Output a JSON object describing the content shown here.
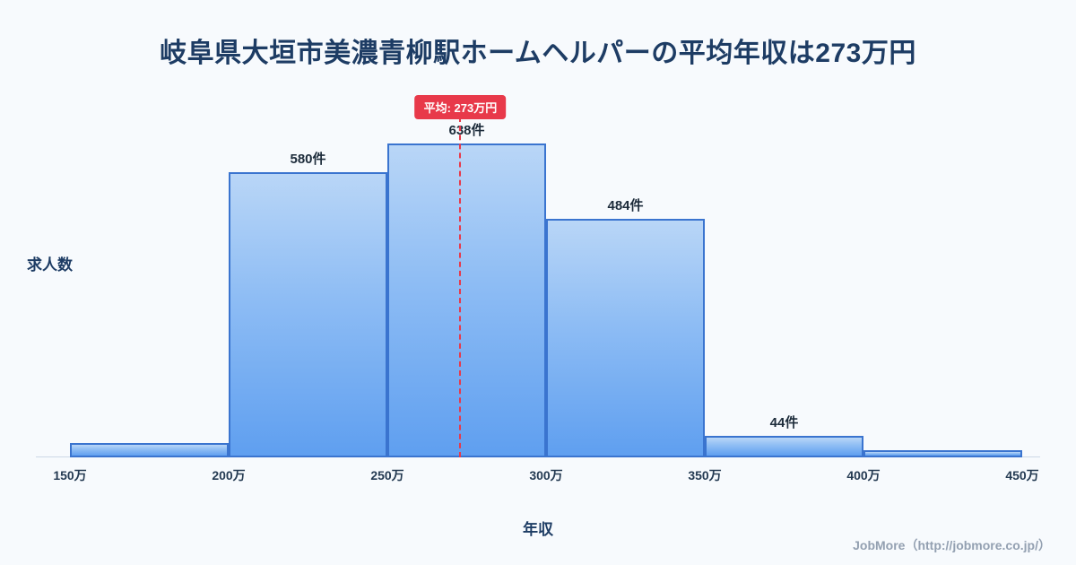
{
  "page": {
    "title": "岐阜県大垣市美濃青柳駅ホームヘルパーの平均年収は273万円",
    "footer": "JobMore（http://jobmore.co.jp/）"
  },
  "chart_data": {
    "type": "bar",
    "title": "岐阜県大垣市美濃青柳駅ホームヘルパーの平均年収は273万円",
    "xlabel": "年収",
    "ylabel": "求人数",
    "x_tick_labels": [
      "150万",
      "200万",
      "250万",
      "300万",
      "350万",
      "400万",
      "450万"
    ],
    "bin_edges": [
      150,
      200,
      250,
      300,
      350,
      400,
      450
    ],
    "values": [
      30,
      580,
      638,
      484,
      44,
      14
    ],
    "bar_labels": [
      "",
      "580件",
      "638件",
      "484件",
      "44件",
      ""
    ],
    "mean": 273,
    "mean_label": "平均: 273万円",
    "legend": "none",
    "grid": "off",
    "colors": {
      "bar_border": "#3a74cf",
      "bar_fill_top": "#b9d6f7",
      "bar_fill_bottom": "#5f9ff0",
      "mean_accent": "#e8394a",
      "title_text": "#1d3c64",
      "background": "#f7fafd",
      "footer_text": "#93a0b1"
    }
  }
}
